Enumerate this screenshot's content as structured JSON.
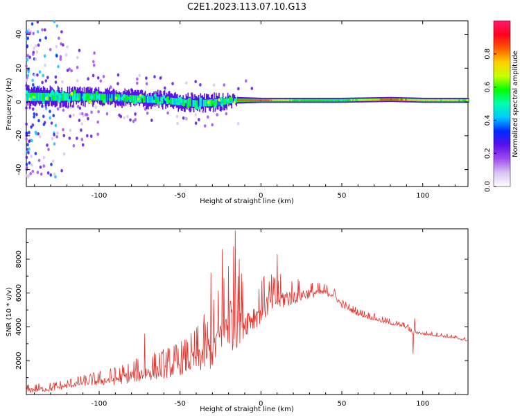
{
  "title": "C2E1.2023.113.07.10.G13",
  "colors": {
    "snr_line": "#e8302a",
    "frame": "#000000"
  },
  "chart_data": [
    {
      "type": "heatmap",
      "title": "C2E1.2023.113.07.10.G13",
      "xlabel": "Height of straight line (km)",
      "ylabel": "Frequency (Hz)",
      "xlim": [
        -145,
        128
      ],
      "ylim": [
        -50,
        48
      ],
      "xticks": [
        -100,
        -50,
        0,
        50,
        100
      ],
      "yticks": [
        -40,
        -20,
        0,
        20,
        40
      ],
      "colorbar": {
        "label": "Normalized spectral amplitude",
        "range": [
          0,
          1
        ],
        "ticks": [
          "0.0",
          "0.2",
          "0.4",
          "0.6",
          "0.8"
        ],
        "colormap": [
          "#ffffff",
          "#d8c4f4",
          "#a04cf0",
          "#5a10e8",
          "#0028ff",
          "#00c8ff",
          "#00ffb0",
          "#00ff00",
          "#c8ff00",
          "#ffd000",
          "#ff5a00",
          "#ff0020",
          "#ff1a6e"
        ]
      },
      "ridge": [
        {
          "x": -145,
          "center": 3,
          "width": 10,
          "strength": 0.35
        },
        {
          "x": -120,
          "center": 3,
          "width": 9,
          "strength": 0.55
        },
        {
          "x": -100,
          "center": 3,
          "width": 8,
          "strength": 0.6
        },
        {
          "x": -80,
          "center": 2,
          "width": 8,
          "strength": 0.62
        },
        {
          "x": -60,
          "center": 1,
          "width": 8,
          "strength": 0.6
        },
        {
          "x": -40,
          "center": -1,
          "width": 8,
          "strength": 0.55
        },
        {
          "x": -25,
          "center": 0,
          "width": 8,
          "strength": 0.6
        },
        {
          "x": -15,
          "center": 1,
          "width": 4,
          "strength": 0.8
        },
        {
          "x": 0,
          "center": 1,
          "width": 3,
          "strength": 0.85
        },
        {
          "x": 20,
          "center": 1,
          "width": 3,
          "strength": 0.6
        },
        {
          "x": 50,
          "center": 1,
          "width": 3,
          "strength": 0.55
        },
        {
          "x": 80,
          "center": 1.5,
          "width": 3,
          "strength": 0.85
        },
        {
          "x": 100,
          "center": 1,
          "width": 3,
          "strength": 0.7
        },
        {
          "x": 128,
          "center": 1,
          "width": 3,
          "strength": 0.6
        }
      ]
    },
    {
      "type": "line",
      "xlabel": "Height of straight line (km)",
      "ylabel": "SNR (10 * v/v)",
      "xlim": [
        -145,
        128
      ],
      "ylim": [
        0,
        9800
      ],
      "xticks": [
        -100,
        -50,
        0,
        50,
        100
      ],
      "yticks": [
        2000,
        4000,
        6000,
        8000
      ],
      "series": [
        {
          "x": [
            -145,
            -130,
            -110,
            -90,
            -70,
            -55,
            -40,
            -30,
            -22,
            -18,
            -14,
            -10,
            -5,
            0,
            5,
            10,
            20,
            30,
            40,
            45,
            50,
            60,
            75,
            90,
            94,
            96,
            100,
            110,
            120,
            128
          ],
          "y": [
            250,
            350,
            700,
            900,
            1300,
            1600,
            2100,
            2700,
            4000,
            4500,
            4700,
            4300,
            4600,
            5000,
            5400,
            5600,
            5800,
            6000,
            6050,
            5900,
            5300,
            4800,
            4350,
            4000,
            3600,
            3700,
            3600,
            3500,
            3350,
            3200
          ],
          "noise": [
            {
              "x": -145,
              "amp": 350
            },
            {
              "x": -110,
              "amp": 450
            },
            {
              "x": -70,
              "amp": 1100
            },
            {
              "x": -45,
              "amp": 1500
            },
            {
              "x": -30,
              "amp": 2800
            },
            {
              "x": -20,
              "amp": 4200
            },
            {
              "x": -15,
              "amp": 4500
            },
            {
              "x": -10,
              "amp": 2000
            },
            {
              "x": 0,
              "amp": 1800
            },
            {
              "x": 10,
              "amp": 1600
            },
            {
              "x": 30,
              "amp": 700
            },
            {
              "x": 50,
              "amp": 350
            },
            {
              "x": 100,
              "amp": 200
            },
            {
              "x": 128,
              "amp": 150
            }
          ],
          "spikes": [
            {
              "x": -72,
              "y": 3600
            },
            {
              "x": -31,
              "y": 7200
            },
            {
              "x": -24,
              "y": 8600
            },
            {
              "x": -20,
              "y": 7600
            },
            {
              "x": -16,
              "y": 9700
            },
            {
              "x": -14,
              "y": 7000
            },
            {
              "x": 10,
              "y": 8300
            },
            {
              "x": 2,
              "y": 7000
            },
            {
              "x": 94,
              "y": 2400
            },
            {
              "x": 95,
              "y": 4500
            }
          ]
        }
      ]
    }
  ]
}
